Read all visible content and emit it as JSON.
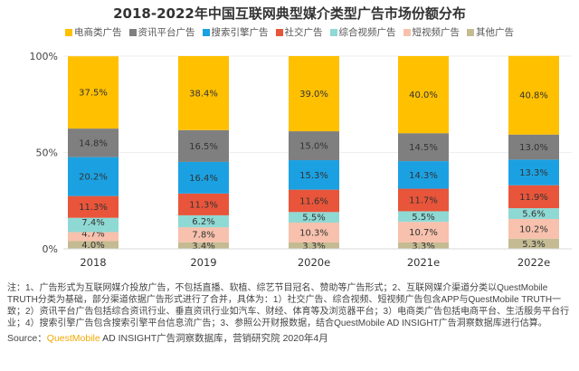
{
  "chart_data": {
    "type": "stacked-bar",
    "title": "2018-2022年中国互联网典型媒介类型广告市场份额分布",
    "categories": [
      "2018",
      "2019",
      "2020e",
      "2021e",
      "2022e"
    ],
    "yticks": [
      "0%",
      "50%",
      "100%"
    ],
    "ylim": [
      0,
      100
    ],
    "legend_position": "top",
    "series": [
      {
        "name": "电商类广告",
        "color": "#ffc000",
        "values": [
          37.5,
          38.4,
          39.0,
          40.0,
          40.8
        ]
      },
      {
        "name": "资讯平台广告",
        "color": "#7f7f7f",
        "values": [
          14.8,
          16.5,
          15.0,
          14.5,
          13.0
        ]
      },
      {
        "name": "搜索引擎广告",
        "color": "#1ba1e2",
        "values": [
          20.2,
          16.4,
          15.3,
          14.3,
          13.3
        ]
      },
      {
        "name": "社交广告",
        "color": "#e8553a",
        "values": [
          11.3,
          11.3,
          11.6,
          11.7,
          11.9
        ]
      },
      {
        "name": "综合视频广告",
        "color": "#8fd9d4",
        "values": [
          7.4,
          6.2,
          5.5,
          5.5,
          5.6
        ]
      },
      {
        "name": "短视频广告",
        "color": "#f7c1ad",
        "values": [
          4.7,
          7.8,
          10.3,
          10.7,
          10.2
        ]
      },
      {
        "name": "其他广告",
        "color": "#c4bb93",
        "values": [
          4.0,
          3.4,
          3.3,
          3.3,
          5.3
        ]
      }
    ],
    "labels": [
      [
        "37.5%",
        "38.4%",
        "39.0%",
        "40.0%",
        "40.8%"
      ],
      [
        "14.8%",
        "16.5%",
        "15.0%",
        "14.5%",
        "13.0%"
      ],
      [
        "20.2%",
        "16.4%",
        "15.3%",
        "14.3%",
        "13.3%"
      ],
      [
        "11.3%",
        "11.3%",
        "11.6%",
        "11.7%",
        "11.9%"
      ],
      [
        "7.4%",
        "6.2%",
        "5.5%",
        "5.5%",
        "5.6%"
      ],
      [
        "4.7%",
        "7.8%",
        "10.3%",
        "10.7%",
        "10.2%"
      ],
      [
        "4.0%",
        "3.4%",
        "3.3%",
        "3.3%",
        "5.3%"
      ]
    ]
  },
  "watermark": "QUESTMOBILE",
  "notes": "注：1、广告形式为互联网媒介投放广告，不包括直播、软植、综艺节目冠名、赞助等广告形式；2、互联网媒介渠道分类以QuestMobile TRUTH分类为基础，部分渠道依据广告形式进行了合并，具体为：1）社交广告、综合视频、短视频广告包含APP与QuestMobile TRUTH一致；2）资讯平台广告包括综合资讯行业、垂直资讯行业如汽车、财经、体育等及浏览器平台；3）电商类广告包括电商平台、生活服务平台行业；4）搜索引擎广告包含搜索引擎平台信息流广告；3、参照公开财报数据，结合QuestMobile AD INSIGHT广告洞察数据库进行估算。",
  "source": {
    "label": "Source：",
    "brand": "QuestMobile",
    "rest": " AD INSIGHT广告洞察数据库，营销研究院 2020年4月"
  }
}
